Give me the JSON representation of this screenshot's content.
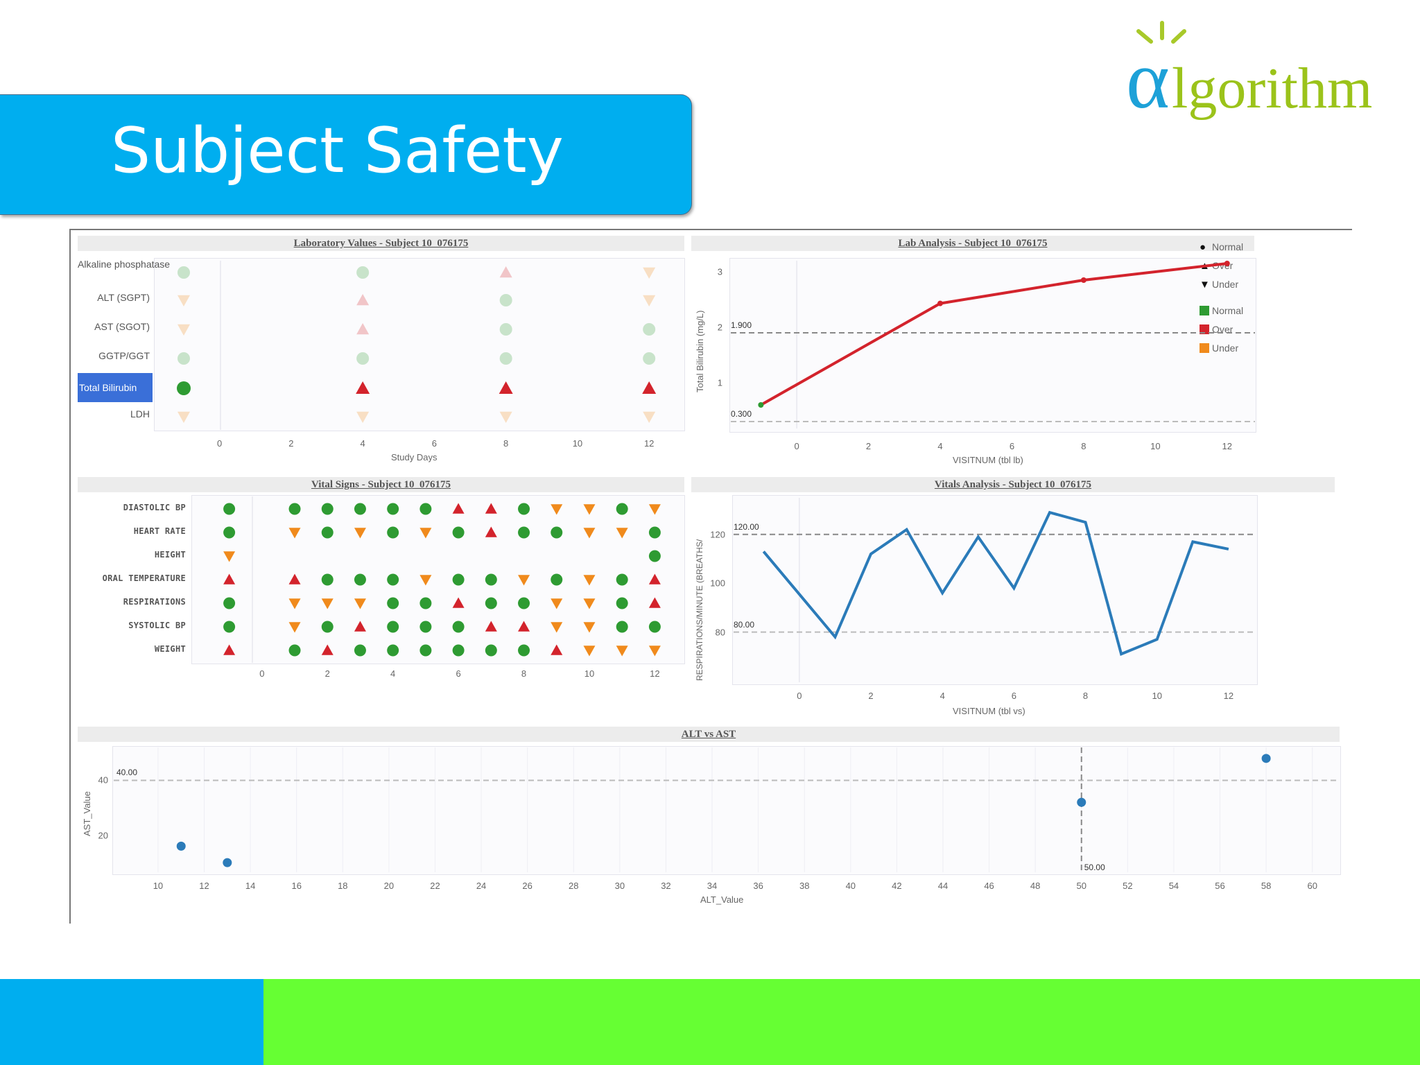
{
  "slide": {
    "title": "Subject Safety",
    "logo_text": "lgorithm",
    "logo_alpha": "α"
  },
  "colors": {
    "normal": "#2e9b32",
    "over": "#d3232c",
    "under": "#f08a1c",
    "series": "#2b7bb9",
    "banner": "#00aeef",
    "footer_blue": "#00aeef",
    "footer_green": "#66ff33"
  },
  "legend": {
    "shapes": [
      {
        "glyph": "●",
        "label": "Normal"
      },
      {
        "glyph": "▲",
        "label": "Over"
      },
      {
        "glyph": "▼",
        "label": "Under"
      }
    ],
    "colors": [
      {
        "label": "Normal",
        "color": "#2e9b32"
      },
      {
        "label": "Over",
        "color": "#d3232c"
      },
      {
        "label": "Under",
        "color": "#f08a1c"
      }
    ]
  },
  "chart_data": [
    {
      "id": "lab_values",
      "type": "scatter",
      "title": "Laboratory Values - Subject 10_076175",
      "xlabel": "Study Days",
      "xlim": [
        -1,
        12.5
      ],
      "xticks": [
        0,
        2,
        4,
        6,
        8,
        10,
        12
      ],
      "rows": [
        "Alkaline phosphatase",
        "ALT (SGPT)",
        "AST (SGOT)",
        "GGTP/GGT",
        "Total Bilirubin",
        "LDH"
      ],
      "selected_row": "Total Bilirubin",
      "points": [
        {
          "row": 0,
          "x": -1,
          "status": "Normal",
          "faded": true
        },
        {
          "row": 0,
          "x": 4,
          "status": "Normal",
          "faded": true
        },
        {
          "row": 0,
          "x": 8,
          "status": "Over",
          "faded": true
        },
        {
          "row": 0,
          "x": 12,
          "status": "Under",
          "faded": true
        },
        {
          "row": 1,
          "x": -1,
          "status": "Under",
          "faded": true
        },
        {
          "row": 1,
          "x": 4,
          "status": "Over",
          "faded": true
        },
        {
          "row": 1,
          "x": 8,
          "status": "Normal",
          "faded": true
        },
        {
          "row": 1,
          "x": 12,
          "status": "Under",
          "faded": true
        },
        {
          "row": 2,
          "x": -1,
          "status": "Under",
          "faded": true
        },
        {
          "row": 2,
          "x": 4,
          "status": "Over",
          "faded": true
        },
        {
          "row": 2,
          "x": 8,
          "status": "Normal",
          "faded": true
        },
        {
          "row": 2,
          "x": 12,
          "status": "Normal",
          "faded": true
        },
        {
          "row": 3,
          "x": -1,
          "status": "Normal",
          "faded": true
        },
        {
          "row": 3,
          "x": 4,
          "status": "Normal",
          "faded": true
        },
        {
          "row": 3,
          "x": 8,
          "status": "Normal",
          "faded": true
        },
        {
          "row": 3,
          "x": 12,
          "status": "Normal",
          "faded": true
        },
        {
          "row": 4,
          "x": -1,
          "status": "Normal",
          "faded": false
        },
        {
          "row": 4,
          "x": 4,
          "status": "Over",
          "faded": false
        },
        {
          "row": 4,
          "x": 8,
          "status": "Over",
          "faded": false
        },
        {
          "row": 4,
          "x": 12,
          "status": "Over",
          "faded": false
        },
        {
          "row": 5,
          "x": -1,
          "status": "Under",
          "faded": true
        },
        {
          "row": 5,
          "x": 4,
          "status": "Under",
          "faded": true
        },
        {
          "row": 5,
          "x": 8,
          "status": "Under",
          "faded": true
        },
        {
          "row": 5,
          "x": 12,
          "status": "Under",
          "faded": true
        }
      ]
    },
    {
      "id": "lab_analysis",
      "type": "line",
      "title": "Lab Analysis - Subject 10_076175",
      "xlabel": "VISITNUM (tbl lb)",
      "ylabel": "Total Bilirubin (mg/L)",
      "xlim": [
        -1.8,
        12.7
      ],
      "ylim": [
        0.2,
        3.2
      ],
      "xticks": [
        0,
        2,
        4,
        6,
        8,
        10,
        12
      ],
      "yticks": [
        1,
        2,
        3
      ],
      "ref_lines": [
        {
          "y": 1.9,
          "label": "1.900"
        },
        {
          "y": 0.3,
          "label": "0.300"
        }
      ],
      "points": [
        {
          "x": -1,
          "y": 0.6,
          "status": "Normal"
        },
        {
          "x": 4,
          "y": 2.43,
          "status": "Over"
        },
        {
          "x": 8,
          "y": 2.85,
          "status": "Over"
        },
        {
          "x": 12,
          "y": 3.15,
          "status": "Over"
        }
      ]
    },
    {
      "id": "vital_signs",
      "type": "scatter",
      "title": "Vital Signs - Subject 10_076175",
      "xlim": [
        -1.5,
        12.5
      ],
      "xticks": [
        0,
        2,
        4,
        6,
        8,
        10,
        12
      ],
      "rows": [
        "DIASTOLIC BP",
        "HEART RATE",
        "HEIGHT",
        "ORAL TEMPERATURE",
        "RESPIRATIONS",
        "SYSTOLIC BP",
        "WEIGHT"
      ],
      "codes": {
        "N": "Normal",
        "O": "Over",
        "U": "Under"
      },
      "grid": [
        "N NNNNNOONUUNU",
        "N UNUNUNONNUUN",
        "U            N",
        "O ONNNUNNUNUNO",
        "N UUUNNONNUUNO",
        "N UNONNNOOUUNN",
        "O NONNNNNNOUUU"
      ]
    },
    {
      "id": "vitals_analysis",
      "type": "line",
      "title": "Vitals Analysis - Subject 10_076175",
      "xlabel": "VISITNUM (tbl vs)",
      "ylabel": "RESPIRATIONS/MINUTE (BREATHS/",
      "xlim": [
        -1.8,
        12.7
      ],
      "ylim": [
        60,
        135
      ],
      "xticks": [
        0,
        2,
        4,
        6,
        8,
        10,
        12
      ],
      "yticks": [
        80,
        100,
        120
      ],
      "ref_lines": [
        {
          "y": 120,
          "label": "120.00"
        },
        {
          "y": 80,
          "label": "80.00"
        }
      ],
      "x": [
        -1,
        1,
        2,
        3,
        4,
        5,
        6,
        7,
        8,
        9,
        10,
        11,
        12
      ],
      "y": [
        113,
        78,
        112,
        122,
        96,
        119,
        98,
        129,
        125,
        71,
        77,
        117,
        114
      ]
    },
    {
      "id": "alt_vs_ast",
      "type": "scatter",
      "title": "ALT vs AST",
      "xlabel": "ALT_Value",
      "ylabel": "AST_Value",
      "xlim": [
        8.5,
        61
      ],
      "ylim": [
        7,
        52
      ],
      "xticks": [
        10,
        12,
        14,
        16,
        18,
        20,
        22,
        24,
        26,
        28,
        30,
        32,
        34,
        36,
        38,
        40,
        42,
        44,
        46,
        48,
        50,
        52,
        54,
        56,
        58,
        60
      ],
      "yticks": [
        20,
        40
      ],
      "ref_lines": [
        {
          "axis": "y",
          "value": 40,
          "label": "40.00"
        },
        {
          "axis": "x",
          "value": 50,
          "label": "50.00"
        }
      ],
      "points": [
        {
          "x": 11,
          "y": 16
        },
        {
          "x": 13,
          "y": 10
        },
        {
          "x": 50,
          "y": 32
        },
        {
          "x": 58,
          "y": 48
        }
      ]
    }
  ]
}
